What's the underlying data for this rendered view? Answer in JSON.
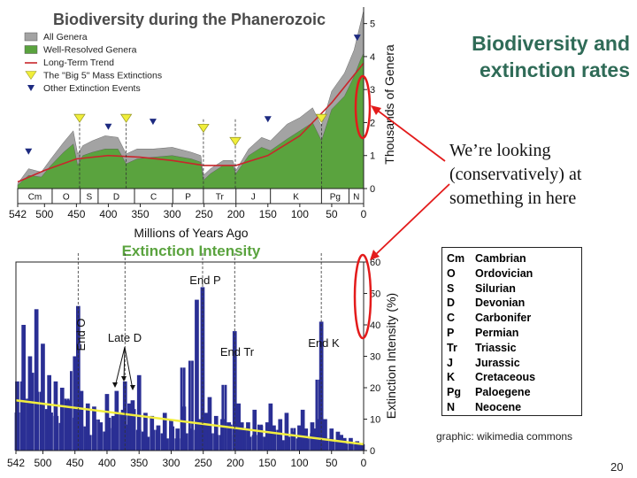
{
  "slide": {
    "title_line1": "Biodiversity and",
    "title_line2": "extinction rates",
    "note_lines": [
      "We’re looking",
      "(conservatively) at",
      "something in here"
    ],
    "credit": "graphic: wikimedia commons",
    "page_number": "20"
  },
  "periods": [
    {
      "abbr": "Cm",
      "name": "Cambrian"
    },
    {
      "abbr": "O",
      "name": "Ordovician"
    },
    {
      "abbr": "S",
      "name": "Silurian"
    },
    {
      "abbr": "D",
      "name": "Devonian"
    },
    {
      "abbr": "C",
      "name": "Carbonifer"
    },
    {
      "abbr": "P",
      "name": "Permian"
    },
    {
      "abbr": "Tr",
      "name": "Triassic"
    },
    {
      "abbr": "J",
      "name": "Jurassic"
    },
    {
      "abbr": "K",
      "name": "Cretaceous"
    },
    {
      "abbr": "Pg",
      "name": "Paloegene"
    },
    {
      "abbr": "N",
      "name": "Neocene"
    }
  ],
  "chart_data": [
    {
      "type": "area",
      "title": "Biodiversity during the Phanerozoic",
      "xlabel": "Millions of Years Ago",
      "ylabel": "Thousands of Genera",
      "xlim": [
        542,
        0
      ],
      "ylim": [
        0,
        5.5
      ],
      "x_ticks": [
        "542",
        "500",
        "450",
        "400",
        "350",
        "300",
        "250",
        "200",
        "150",
        "100",
        "50",
        "0"
      ],
      "y_ticks": [
        "0",
        "1",
        "2",
        "3",
        "4",
        "5"
      ],
      "period_bands": [
        {
          "label": "Cm",
          "start": 542,
          "end": 488
        },
        {
          "label": "O",
          "start": 488,
          "end": 444
        },
        {
          "label": "S",
          "start": 444,
          "end": 416
        },
        {
          "label": "D",
          "start": 416,
          "end": 359
        },
        {
          "label": "C",
          "start": 359,
          "end": 299
        },
        {
          "label": "P",
          "start": 299,
          "end": 251
        },
        {
          "label": "Tr",
          "start": 251,
          "end": 200
        },
        {
          "label": "J",
          "start": 200,
          "end": 146
        },
        {
          "label": "K",
          "start": 146,
          "end": 66
        },
        {
          "label": "Pg",
          "start": 66,
          "end": 23
        },
        {
          "label": "N",
          "start": 23,
          "end": 0
        }
      ],
      "legend_entries": [
        "All Genera",
        "Well-Resolved Genera",
        "Long-Term Trend",
        "The \"Big 5\" Mass Extinctions",
        "Other Extinction Events"
      ],
      "legend_colors": {
        "all": "#a3a3a3",
        "resolved": "#5aa33e",
        "trend": "#c8262b",
        "big5": "#f0ee3a",
        "other": "#1d2a80"
      },
      "series": [
        {
          "name": "All Genera",
          "x": [
            542,
            525,
            505,
            490,
            470,
            455,
            448,
            440,
            425,
            405,
            385,
            372,
            355,
            330,
            300,
            270,
            255,
            251,
            240,
            220,
            205,
            200,
            180,
            160,
            146,
            120,
            100,
            80,
            66,
            50,
            30,
            15,
            5,
            0
          ],
          "values": [
            0.15,
            0.6,
            0.5,
            0.9,
            1.4,
            1.75,
            1.05,
            1.3,
            1.45,
            1.6,
            1.55,
            1.05,
            1.2,
            1.2,
            1.25,
            1.1,
            1.0,
            0.4,
            0.6,
            0.85,
            0.85,
            0.55,
            1.2,
            1.55,
            1.45,
            1.95,
            2.15,
            2.45,
            1.9,
            2.95,
            3.5,
            4.2,
            5.0,
            5.4
          ]
        },
        {
          "name": "Well-Resolved Genera",
          "x": [
            542,
            525,
            505,
            490,
            470,
            455,
            448,
            440,
            425,
            405,
            385,
            372,
            355,
            330,
            300,
            270,
            255,
            251,
            240,
            220,
            205,
            200,
            180,
            160,
            146,
            120,
            100,
            80,
            66,
            50,
            30,
            15,
            5,
            0
          ],
          "values": [
            0.1,
            0.4,
            0.35,
            0.7,
            1.1,
            1.35,
            0.7,
            1.0,
            1.1,
            1.2,
            1.2,
            0.75,
            0.9,
            0.95,
            1.0,
            0.9,
            0.8,
            0.25,
            0.45,
            0.7,
            0.7,
            0.45,
            1.0,
            1.25,
            1.15,
            1.5,
            1.75,
            2.0,
            1.45,
            2.4,
            2.8,
            3.4,
            3.9,
            4.1
          ]
        },
        {
          "name": "Long-Term Trend",
          "x": [
            542,
            500,
            450,
            400,
            350,
            300,
            250,
            200,
            150,
            100,
            50,
            0
          ],
          "values": [
            0.2,
            0.55,
            0.9,
            1.0,
            0.95,
            0.85,
            0.7,
            0.7,
            1.0,
            1.6,
            2.6,
            3.8
          ]
        }
      ],
      "big5_extinctions": [
        445,
        372,
        251,
        201,
        66
      ],
      "other_extinction_events": [
        525,
        400,
        330,
        150,
        10
      ]
    },
    {
      "type": "bar",
      "title": "Extinction Intensity",
      "xlabel": "",
      "ylabel": "Extinction Intensity (%)",
      "xlim": [
        542,
        0
      ],
      "ylim": [
        0,
        60
      ],
      "x_ticks": [
        "542",
        "500",
        "450",
        "400",
        "350",
        "300",
        "250",
        "200",
        "150",
        "100",
        "50",
        "0"
      ],
      "y_ticks": [
        "0",
        "10",
        "20",
        "30",
        "40",
        "50",
        "60"
      ],
      "annotations": [
        "End O",
        "Late D",
        "End P",
        "End Tr",
        "End K"
      ],
      "colors": {
        "bars": "#2a2f94",
        "trend": "#f2ee3e"
      },
      "trend_line": {
        "x": [
          542,
          0
        ],
        "values": [
          16,
          2
        ]
      },
      "series": [
        {
          "x": [
            540,
            530,
            520,
            510,
            500,
            490,
            480,
            470,
            460,
            450,
            445,
            440,
            430,
            420,
            410,
            400,
            390,
            385,
            375,
            372,
            365,
            360,
            350,
            340,
            330,
            320,
            310,
            300,
            290,
            280,
            270,
            260,
            255,
            251,
            245,
            240,
            230,
            220,
            210,
            201,
            195,
            190,
            180,
            170,
            160,
            150,
            145,
            140,
            130,
            120,
            110,
            100,
            95,
            90,
            80,
            75,
            70,
            66,
            60,
            50,
            40,
            35,
            30,
            20,
            10,
            5
          ],
          "values": [
            22,
            40,
            30,
            45,
            34,
            24,
            22,
            20,
            16,
            30,
            46,
            19,
            15,
            14,
            9,
            18,
            11,
            19,
            13,
            22,
            15,
            16,
            24,
            12,
            11,
            8,
            12,
            10,
            7,
            14,
            7,
            48,
            10,
            52,
            12,
            17,
            11,
            10,
            9,
            38,
            15,
            9,
            9,
            13,
            8,
            9,
            15,
            8,
            10,
            12,
            6,
            8,
            13,
            7,
            9,
            7,
            10,
            41,
            10,
            7,
            6,
            5,
            4,
            4,
            3,
            2
          ]
        }
      ]
    }
  ]
}
